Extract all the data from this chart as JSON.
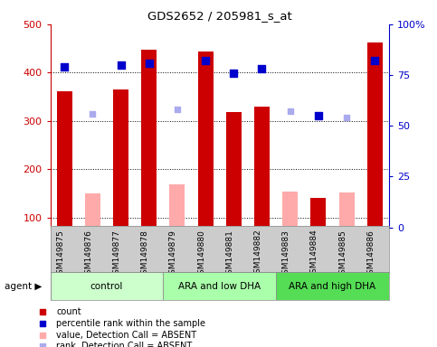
{
  "title": "GDS2652 / 205981_s_at",
  "samples": [
    "GSM149875",
    "GSM149876",
    "GSM149877",
    "GSM149878",
    "GSM149879",
    "GSM149880",
    "GSM149881",
    "GSM149882",
    "GSM149883",
    "GSM149884",
    "GSM149885",
    "GSM149886"
  ],
  "groups": [
    {
      "label": "control",
      "indices": [
        0,
        1,
        2,
        3
      ]
    },
    {
      "label": "ARA and low DHA",
      "indices": [
        4,
        5,
        6,
        7
      ]
    },
    {
      "label": "ARA and high DHA",
      "indices": [
        8,
        9,
        10,
        11
      ]
    }
  ],
  "group_colors": [
    "#ccffcc",
    "#aaffaa",
    "#55dd55"
  ],
  "count_present": [
    362,
    null,
    365,
    447,
    null,
    444,
    318,
    330,
    null,
    140,
    null,
    462
  ],
  "count_absent": [
    null,
    150,
    null,
    null,
    168,
    null,
    null,
    null,
    153,
    null,
    152,
    null
  ],
  "rank_present": [
    79,
    null,
    80,
    81,
    null,
    82,
    76,
    78,
    null,
    55,
    null,
    82
  ],
  "rank_absent": [
    null,
    56,
    null,
    null,
    58,
    null,
    null,
    null,
    57,
    null,
    54,
    null
  ],
  "ylim_left": [
    80,
    500
  ],
  "ylim_right": [
    0,
    100
  ],
  "left_ticks": [
    100,
    200,
    300,
    400,
    500
  ],
  "right_ticks": [
    0,
    25,
    50,
    75,
    100
  ],
  "right_tick_labels": [
    "0",
    "25",
    "50",
    "75",
    "100%"
  ],
  "count_present_color": "#cc0000",
  "count_absent_color": "#ffaaaa",
  "rank_present_color": "#0000cc",
  "rank_absent_color": "#aaaaee",
  "left_axis_color": "#cc0000",
  "right_axis_color": "#0000cc",
  "xlabel_bg": "#cccccc",
  "agent_label": "agent"
}
